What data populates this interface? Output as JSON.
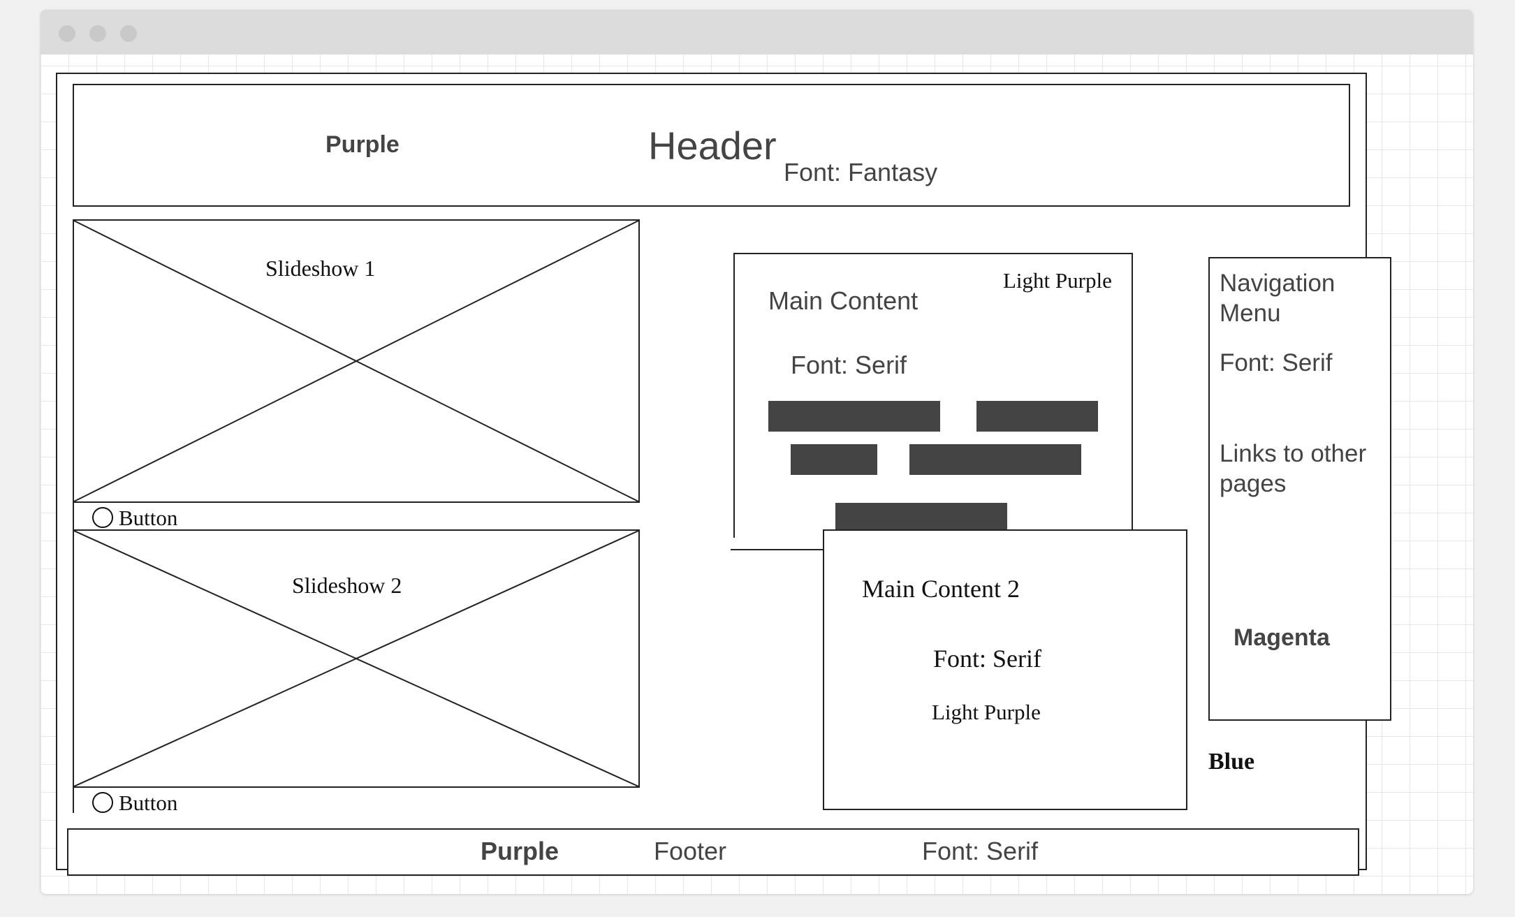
{
  "header": {
    "color_note": "Purple",
    "title": "Header",
    "font_note": "Font: Fantasy"
  },
  "slideshow1": {
    "label": "Slideshow 1",
    "button": "Button"
  },
  "slideshow2": {
    "label": "Slideshow 2",
    "button": "Button"
  },
  "main_content": {
    "color_note": "Light Purple",
    "title": "Main Content",
    "font_note": "Font: Serif"
  },
  "main_content_2": {
    "title": "Main Content 2",
    "font_note": "Font: Serif",
    "color_note": "Light Purple"
  },
  "navigation": {
    "title": "Navigation Menu",
    "font_note": "Font: Serif",
    "links_note": "Links to other pages",
    "color_note": "Magenta"
  },
  "side_note": "Blue",
  "footer": {
    "color_note": "Purple",
    "title": "Footer",
    "font_note": "Font: Serif"
  },
  "colors": {
    "titlebar": "#dcdcdc",
    "bars": "#444444",
    "outline": "#222222"
  }
}
